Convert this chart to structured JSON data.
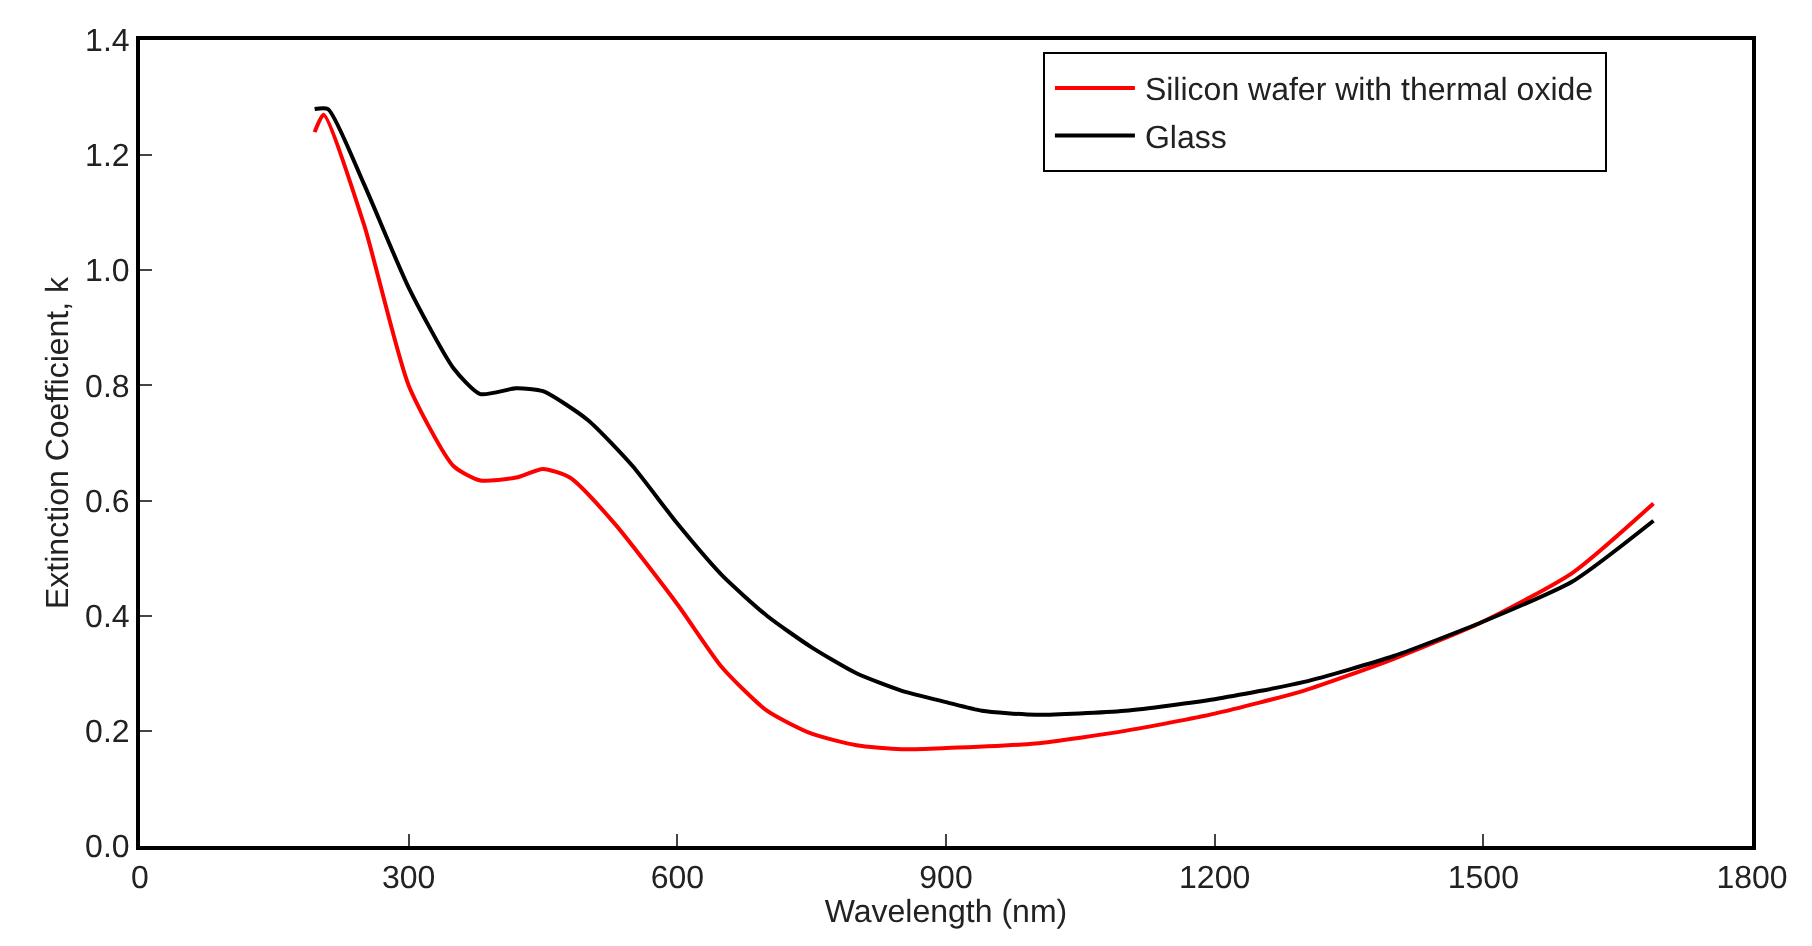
{
  "chart_data": {
    "type": "line",
    "xlabel": "Wavelength (nm)",
    "ylabel": "Extinction Coefficient, k",
    "xlim": [
      0,
      1800
    ],
    "xticks": [
      0,
      300,
      600,
      900,
      1200,
      1500,
      1800
    ],
    "ylim": [
      0,
      1.4
    ],
    "yticks": [
      {
        "value": 0,
        "label": "0.0"
      },
      {
        "value": 0.2,
        "label": "0.2"
      },
      {
        "value": 0.4,
        "label": "0.4"
      },
      {
        "value": 0.6,
        "label": "0.6"
      },
      {
        "value": 0.8,
        "label": "0.8"
      },
      {
        "value": 1,
        "label": "1.0"
      },
      {
        "value": 1.2,
        "label": "1.2"
      },
      {
        "value": 1.4,
        "label": "1.4"
      }
    ],
    "legend": "top right",
    "line_style": "solid",
    "marker": "none",
    "series": [
      {
        "name": "Silicon wafer with thermal oxide",
        "color": "#ff0000",
        "x": [
          195,
          205,
          250,
          300,
          350,
          380,
          420,
          450,
          480,
          530,
          600,
          650,
          700,
          750,
          800,
          850,
          900,
          1000,
          1100,
          1200,
          1300,
          1400,
          1500,
          1600,
          1690
        ],
        "values": [
          1.24,
          1.27,
          1.08,
          0.8,
          0.66,
          0.635,
          0.64,
          0.655,
          0.64,
          0.56,
          0.42,
          0.31,
          0.235,
          0.195,
          0.175,
          0.168,
          0.17,
          0.178,
          0.2,
          0.23,
          0.27,
          0.325,
          0.39,
          0.475,
          0.595
        ]
      },
      {
        "name": "Glass",
        "color": "#000000",
        "x": [
          195,
          210,
          250,
          300,
          350,
          380,
          420,
          450,
          500,
          550,
          600,
          650,
          700,
          750,
          800,
          850,
          900,
          940,
          1000,
          1100,
          1200,
          1300,
          1400,
          1500,
          1600,
          1690
        ],
        "values": [
          1.28,
          1.28,
          1.15,
          0.97,
          0.83,
          0.785,
          0.795,
          0.79,
          0.74,
          0.66,
          0.56,
          0.47,
          0.4,
          0.345,
          0.3,
          0.27,
          0.25,
          0.235,
          0.228,
          0.235,
          0.255,
          0.285,
          0.33,
          0.39,
          0.46,
          0.565
        ]
      }
    ]
  }
}
